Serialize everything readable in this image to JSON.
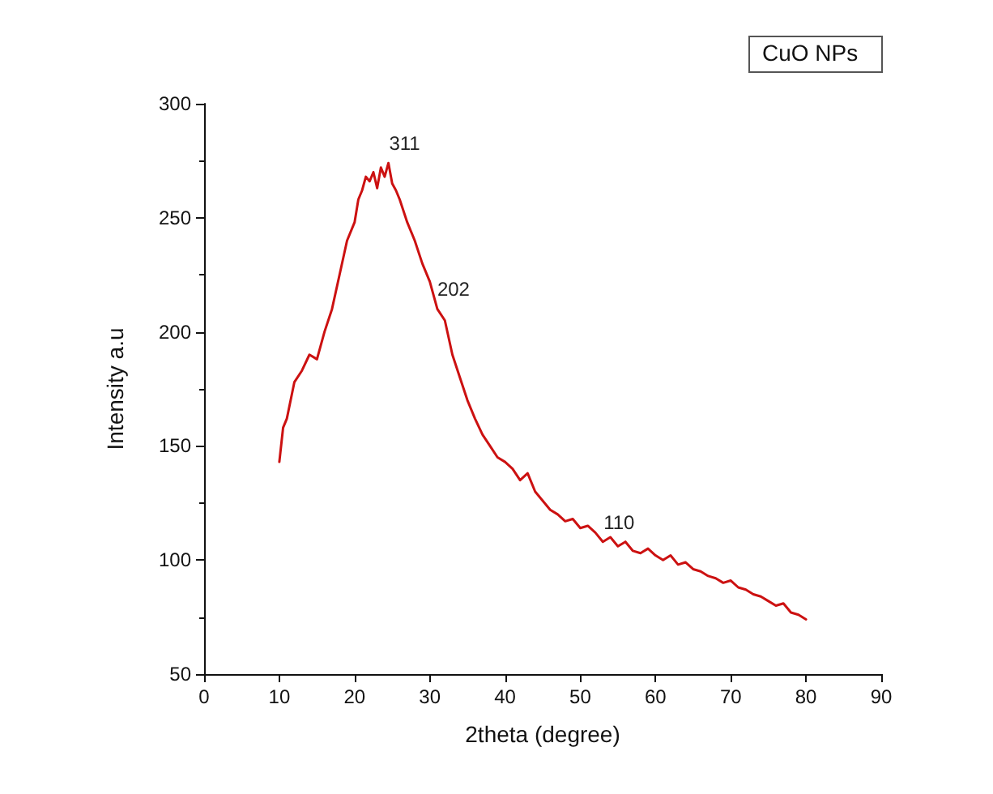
{
  "chart_data": {
    "type": "line",
    "xlabel": "2theta (degree)",
    "ylabel": "Intensity a.u",
    "x": [
      10,
      10.5,
      11,
      12,
      13,
      14,
      15,
      16,
      17,
      18,
      19,
      20,
      20.5,
      21,
      21.5,
      22,
      22.5,
      23,
      23.5,
      24,
      24.5,
      25,
      25.5,
      26,
      27,
      28,
      29,
      30,
      31,
      32,
      33,
      34,
      35,
      36,
      37,
      38,
      39,
      40,
      41,
      42,
      43,
      44,
      45,
      46,
      47,
      48,
      49,
      50,
      51,
      52,
      53,
      54,
      55,
      56,
      57,
      58,
      59,
      60,
      61,
      62,
      63,
      64,
      65,
      66,
      67,
      68,
      69,
      70,
      71,
      72,
      73,
      74,
      75,
      76,
      77,
      78,
      79,
      80
    ],
    "series": [
      {
        "color": "#cc1111",
        "values": [
          143,
          158,
          162,
          178,
          183,
          190,
          188,
          200,
          210,
          225,
          240,
          248,
          258,
          262,
          268,
          266,
          270,
          263,
          272,
          268,
          274,
          265,
          262,
          258,
          248,
          240,
          230,
          222,
          210,
          205,
          190,
          180,
          170,
          162,
          155,
          150,
          145,
          143,
          140,
          135,
          138,
          130,
          126,
          122,
          120,
          117,
          118,
          114,
          115,
          112,
          108,
          110,
          106,
          108,
          104,
          103,
          105,
          102,
          100,
          102,
          98,
          99,
          96,
          95,
          93,
          92,
          90,
          91,
          88,
          87,
          85,
          84,
          82,
          80,
          81,
          77,
          76,
          74
        ]
      }
    ],
    "xlim": [
      0,
      90
    ],
    "xticks": [
      0,
      10,
      20,
      30,
      40,
      50,
      60,
      70,
      80,
      90
    ],
    "ylim": [
      50,
      300
    ],
    "yticks": [
      50,
      100,
      150,
      200,
      250,
      300
    ],
    "grid": false,
    "marker": "none",
    "line_style": "solid",
    "annotations": [
      {
        "text": "311",
        "x": 24.5,
        "y": 274
      },
      {
        "text": "202",
        "x": 31,
        "y": 210
      },
      {
        "text": "110",
        "x": 53,
        "y": 108
      },
      "CuO NPs"
    ]
  }
}
